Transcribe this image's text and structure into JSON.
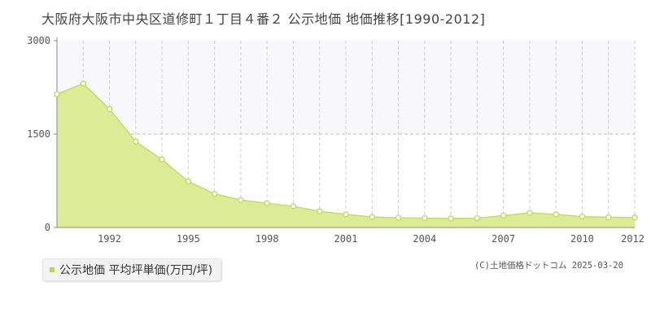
{
  "title": "大阪府大阪市中央区道修町１丁目４番２ 公示地価 地価推移[1990-2012]",
  "legend": {
    "label": "公示地価 平均坪単価(万円/坪)"
  },
  "credit": "(C)土地価格ドットコム 2025-03-20",
  "colors": {
    "fill": "#dcec96",
    "line": "#c3de5d",
    "accent": "#b5d94a",
    "upper_band": "#f8f7f9"
  },
  "chart_data": {
    "type": "area",
    "title": "大阪府大阪市中央区道修町１丁目４番２ 公示地価 地価推移[1990-2012]",
    "xlabel": "",
    "ylabel": "",
    "x": [
      1990,
      1991,
      1992,
      1993,
      1994,
      1995,
      1996,
      1997,
      1998,
      1999,
      2000,
      2001,
      2002,
      2003,
      2004,
      2005,
      2006,
      2007,
      2008,
      2009,
      2010,
      2011,
      2012
    ],
    "series": [
      {
        "name": "公示地価 平均坪単価(万円/坪)",
        "values": [
          2140,
          2310,
          1900,
          1380,
          1090,
          740,
          540,
          440,
          390,
          340,
          260,
          210,
          170,
          155,
          150,
          145,
          150,
          190,
          235,
          210,
          175,
          165,
          160
        ]
      }
    ],
    "ylim": [
      0,
      3000
    ],
    "yticks": [
      0,
      1500,
      3000
    ],
    "xticks": [
      1992,
      1995,
      1998,
      2001,
      2004,
      2007,
      2010,
      2012
    ],
    "grid": true,
    "legend_position": "bottom-left"
  }
}
